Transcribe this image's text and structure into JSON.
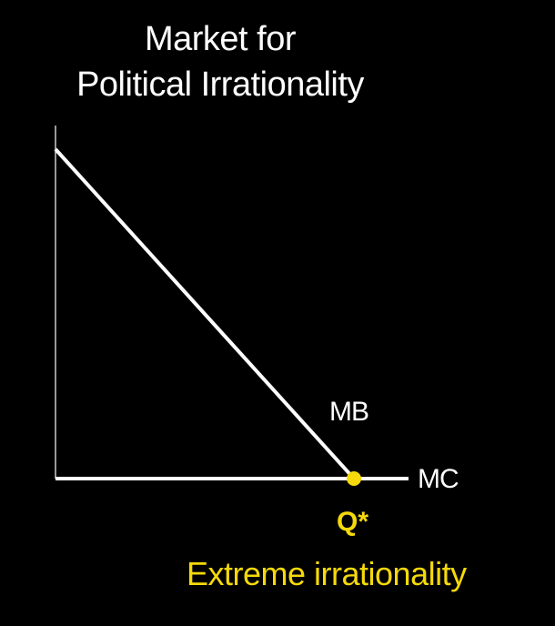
{
  "title": {
    "line1": "Market for",
    "line2": "Political Irrationality"
  },
  "curves": {
    "mb_label": "MB",
    "mc_label": "MC"
  },
  "equilibrium": {
    "label": "Q*",
    "description": "Extreme irrationality"
  },
  "colors": {
    "background": "#000000",
    "foreground": "#ffffff",
    "accent": "#f5d90a"
  }
}
